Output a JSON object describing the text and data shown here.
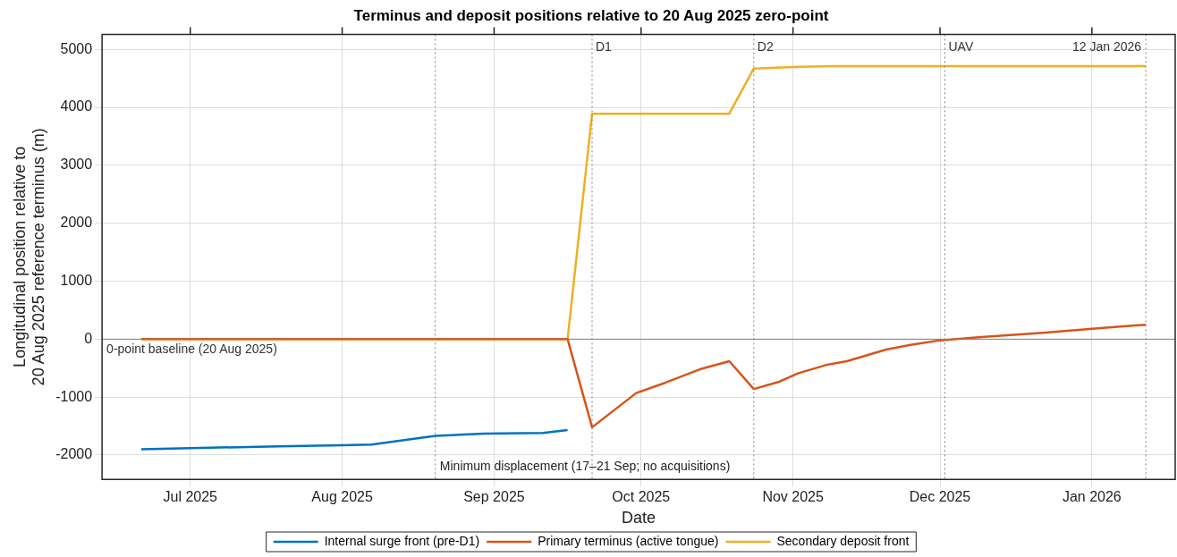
{
  "chart_data": {
    "type": "line",
    "title": "Terminus and deposit positions relative to 20 Aug 2025 zero-point",
    "xlabel": "Date",
    "ylabel": "Longitudinal position relative to\n20 Aug 2025 reference terminus (m)",
    "series": [
      {
        "name": "Internal surge front (pre-D1)",
        "color": "#0072bd",
        "x": [
          "2025-06-21",
          "2025-07-01",
          "2025-07-19",
          "2025-08-01",
          "2025-08-07",
          "2025-08-20",
          "2025-08-30",
          "2025-09-11",
          "2025-09-16"
        ],
        "values": [
          -1900,
          -1880,
          -1850,
          -1830,
          -1820,
          -1670,
          -1630,
          -1620,
          -1570
        ]
      },
      {
        "name": "Primary terminus (active tongue)",
        "color": "#d95319",
        "x": [
          "2025-06-21",
          "2025-09-16",
          "2025-09-21",
          "2025-09-30",
          "2025-10-06",
          "2025-10-13",
          "2025-10-19",
          "2025-10-24",
          "2025-10-29",
          "2025-11-02",
          "2025-11-08",
          "2025-11-12",
          "2025-11-20",
          "2025-11-25",
          "2025-12-01",
          "2025-12-10",
          "2025-12-22",
          "2026-01-01",
          "2026-01-12"
        ],
        "values": [
          0,
          0,
          -1520,
          -930,
          -750,
          -520,
          -380,
          -860,
          -740,
          -590,
          -440,
          -380,
          -180,
          -100,
          -20,
          40,
          110,
          180,
          250
        ]
      },
      {
        "name": "Secondary deposit front",
        "color": "#edb120",
        "x": [
          "2025-06-21",
          "2025-09-16",
          "2025-09-21",
          "2025-10-19",
          "2025-10-24",
          "2025-11-02",
          "2025-11-09",
          "2026-01-12"
        ],
        "values": [
          0,
          0,
          3890,
          3890,
          4670,
          4700,
          4710,
          4710
        ]
      }
    ],
    "xlim": [
      "2025-06-13",
      "2026-01-18"
    ],
    "xticks": [
      {
        "value": "2025-07-01",
        "label": "Jul 2025"
      },
      {
        "value": "2025-08-01",
        "label": "Aug 2025"
      },
      {
        "value": "2025-09-01",
        "label": "Sep 2025"
      },
      {
        "value": "2025-10-01",
        "label": "Oct 2025"
      },
      {
        "value": "2025-11-01",
        "label": "Nov 2025"
      },
      {
        "value": "2025-12-01",
        "label": "Dec 2025"
      },
      {
        "value": "2026-01-01",
        "label": "Jan 2026"
      }
    ],
    "ylim": [
      -2420,
      5260
    ],
    "yticks": [
      -2000,
      -1000,
      0,
      1000,
      2000,
      3000,
      4000,
      5000
    ],
    "ref_lines": [
      {
        "axis": "y",
        "value": 0,
        "label": "0-point baseline (20 Aug 2025)",
        "color": "#808080",
        "line_style": "solid"
      },
      {
        "axis": "x",
        "value": "2025-08-20",
        "label": null,
        "color": "#808080",
        "line_style": "dotted"
      },
      {
        "axis": "x",
        "value": "2025-09-21",
        "label": "D1",
        "color": "#808080",
        "line_style": "dotted"
      },
      {
        "axis": "x",
        "value": "2025-10-24",
        "label": "D2",
        "color": "#808080",
        "line_style": "dotted"
      },
      {
        "axis": "x",
        "value": "2025-12-02",
        "label": "UAV",
        "color": "#808080",
        "line_style": "dotted"
      },
      {
        "axis": "x",
        "value": "2026-01-12",
        "label": "12 Jan 2026",
        "color": "#808080",
        "line_style": "dotted"
      }
    ],
    "annotations": [
      "Minimum displacement (17–21 Sep; no acquisitions)"
    ],
    "grid": true,
    "legend": "bottom",
    "marker": "none",
    "line_style": "solid"
  }
}
